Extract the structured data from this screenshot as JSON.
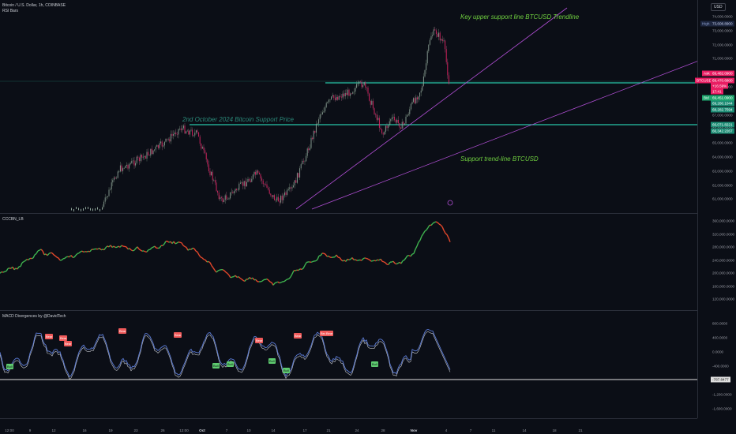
{
  "header": {
    "title": "Bitcoin / U.S. Dollar, 1h, COINBASE",
    "subtitle": "RSI Bars"
  },
  "annotations": {
    "key_upper": "Key upper support line BTCUSD  Trendline",
    "oct2_support": "2nd October 2024 Bitcoin Support Price",
    "support_trend": "Support trend-line BTCUSD"
  },
  "panes": {
    "pane2_title": "CCCBN_LB",
    "pane3_title": "MACD Divergences by @DavidTech"
  },
  "currency": "USD",
  "price_axis": [
    "74,000.0000",
    "73,000.0000",
    "72,000.0000",
    "71,000.0000",
    "70,000.0000",
    "69,000.0000",
    "68,000.0000",
    "67,000.0000",
    "66,000.0000",
    "65,000.0000",
    "64,000.0000",
    "63,000.0000",
    "62,000.0000",
    "61,000.0000"
  ],
  "cci_axis": [
    "360,000.0000",
    "320,000.0000",
    "280,000.0000",
    "240,000.0000",
    "200,000.0000",
    "160,000.0000",
    "120,000.0000"
  ],
  "macd_axis": [
    "800.0000",
    "400.0000",
    "0.0000",
    "-400.0000",
    "-800.0000",
    "-1,200.0000",
    "-1,600.0000"
  ],
  "price_tags": {
    "high_label": "High",
    "high_value": "73,608.8900",
    "ask_label": "Ask",
    "ask_value": "69,482.0900",
    "btc_label": "BTCUSD",
    "btc_value": "69,470.6800",
    "change": "+16.59%",
    "countdown": "17:41",
    "bid_label": "Bid",
    "bid_value": "69,451.0900",
    "tag1": "69,280.1044",
    "tag2": "68,282.7594",
    "tag3": "66,071.8221",
    "tag4": "66,342.2267",
    "macd_level": "-787.8477"
  },
  "time_axis": [
    "12:00",
    "9",
    "12",
    "16",
    "19",
    "23",
    "26",
    "12:00",
    "Oct",
    "7",
    "10",
    "14",
    "17",
    "21",
    "24",
    "28",
    "Nov",
    "4",
    "7",
    "11",
    "14",
    "18",
    "21"
  ],
  "macd_labels": {
    "bear": [
      "Bear",
      "Bear",
      "Bear",
      "Bear",
      "Bear",
      "Bear",
      "Bear",
      "Bear",
      "Bear"
    ],
    "bull": [
      "Bull",
      "Bull",
      "Bull",
      "Bull",
      "Bull",
      "Bull"
    ]
  },
  "colors": {
    "bg": "#0b0e16",
    "up": "#4caf50",
    "down": "#e91e63",
    "teal": "#26c6a8",
    "purple": "#b24fd6",
    "macd": "#5b7bd6",
    "signal": "#c8cbd2"
  }
}
